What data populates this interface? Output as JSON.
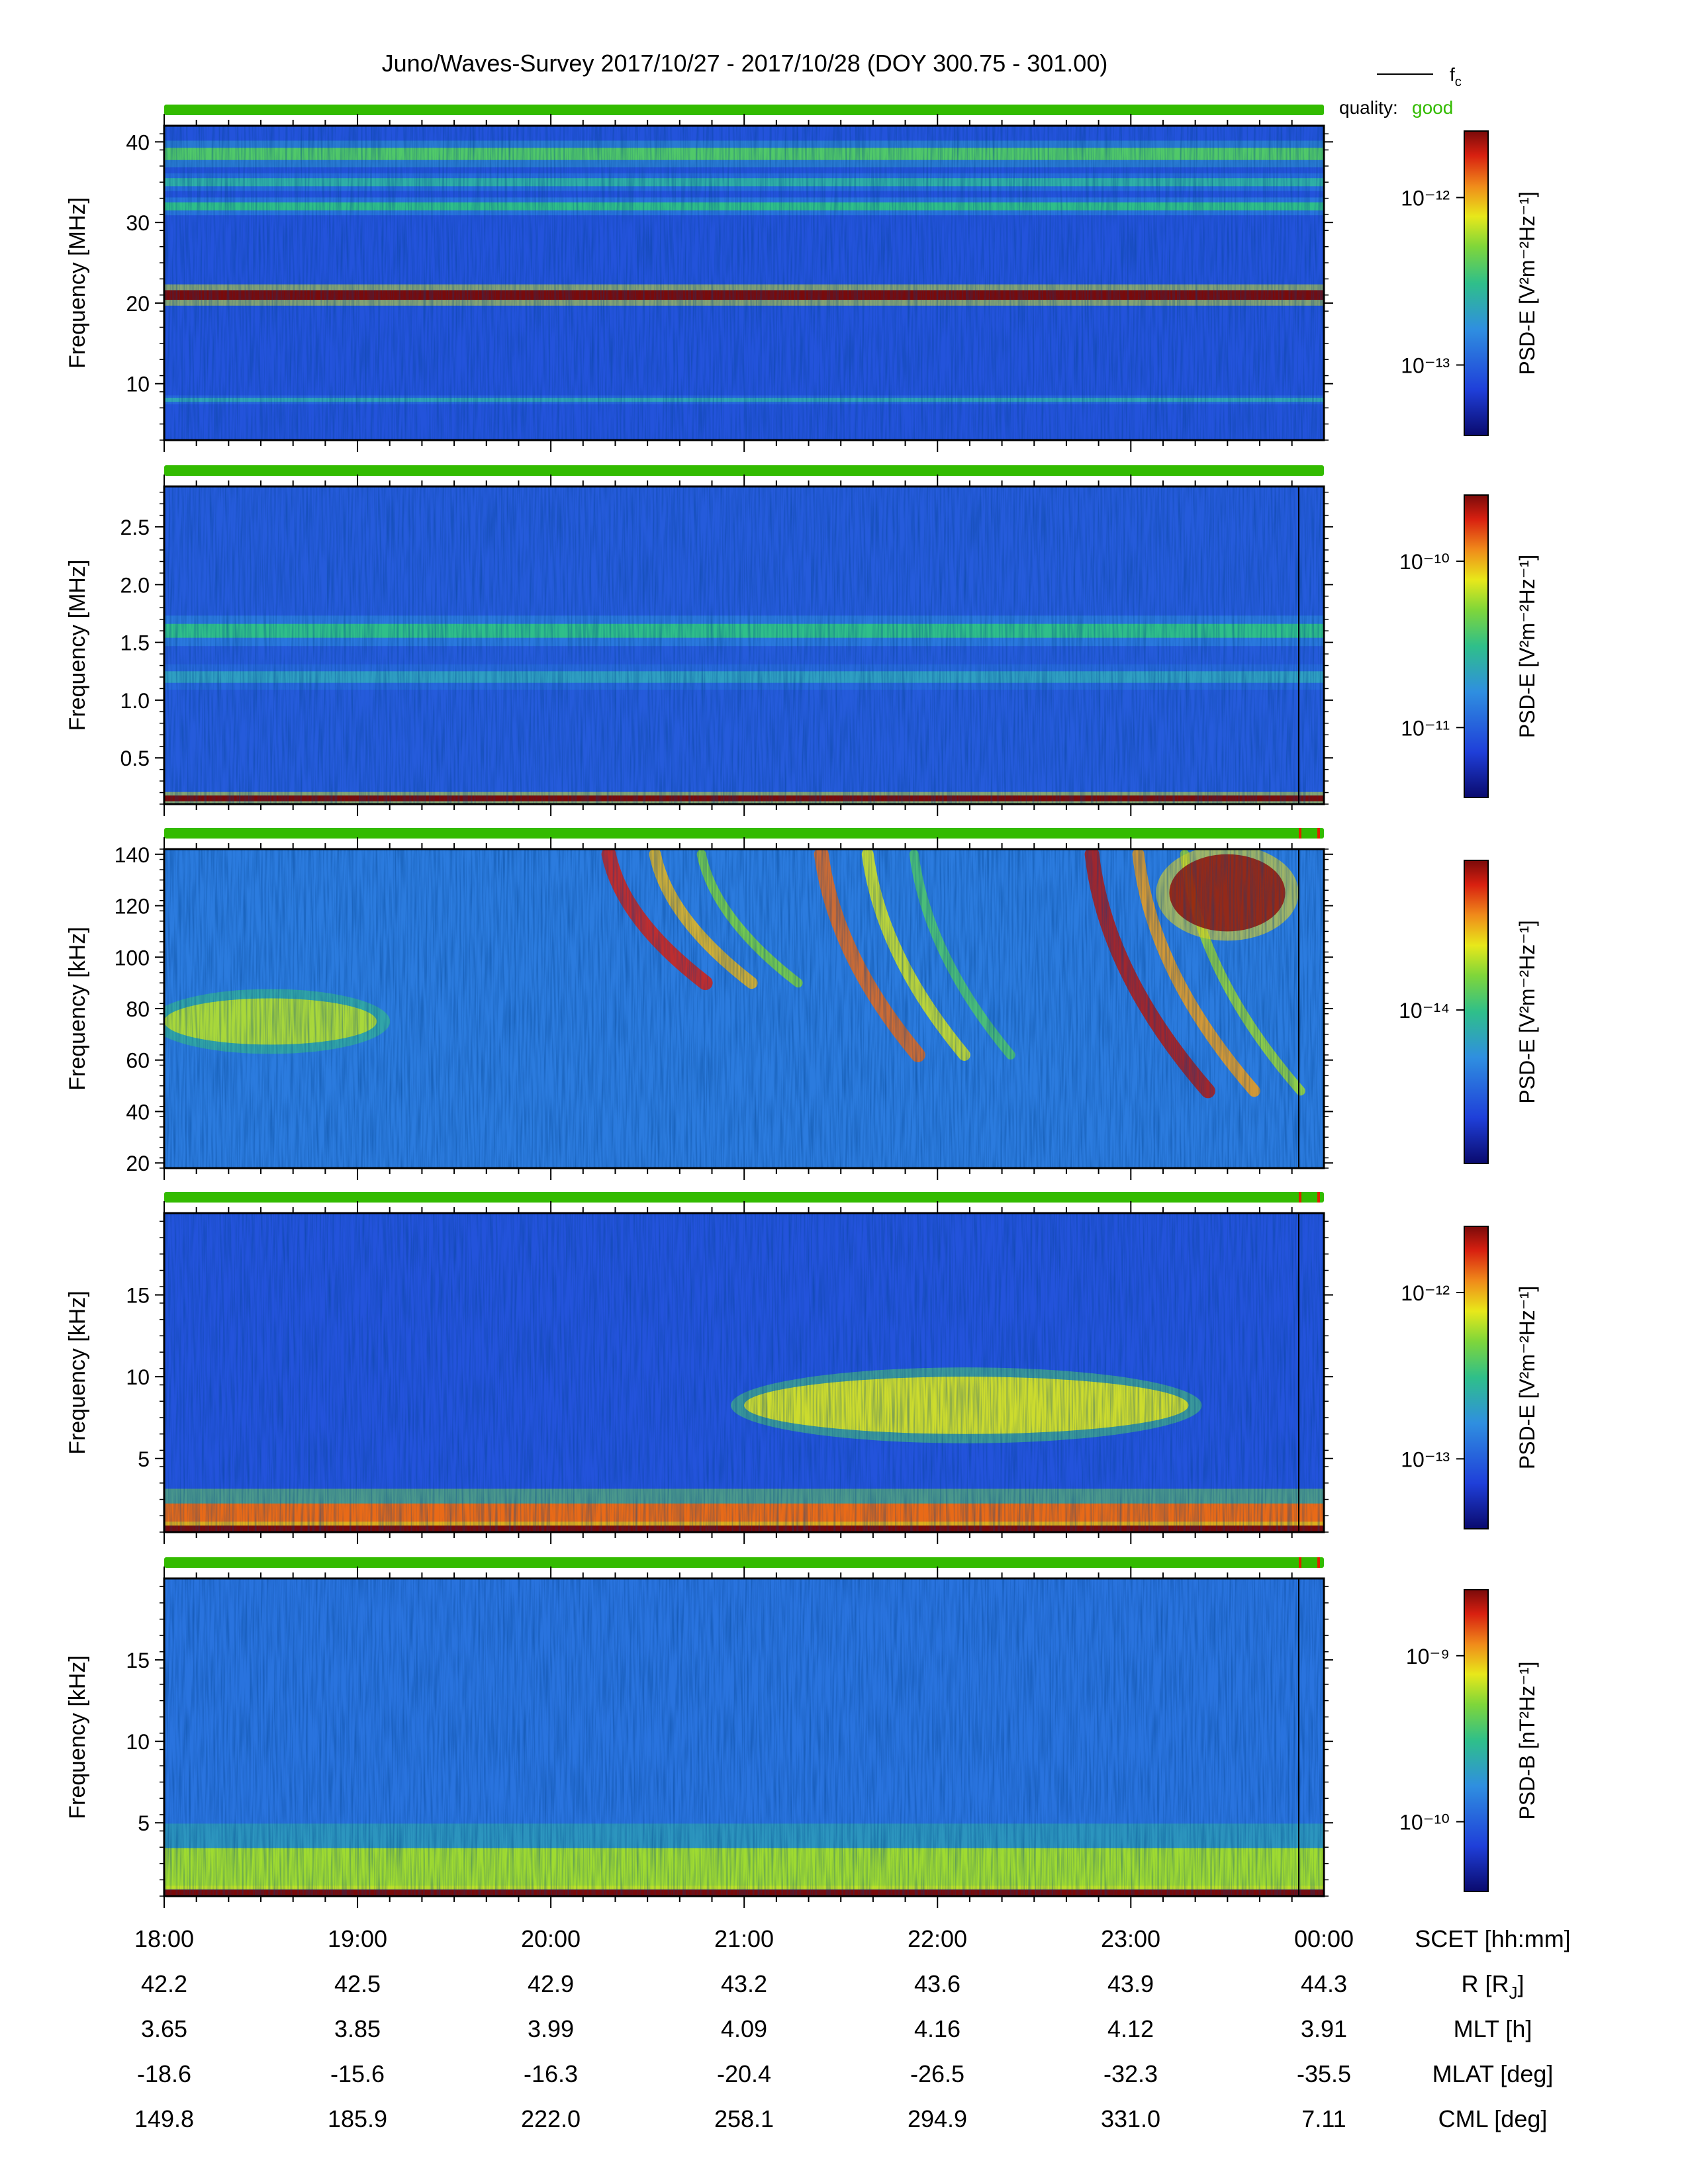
{
  "title": "Juno/Waves-Survey  2017/10/27 - 2017/10/28 (DOY 300.75 - 301.00)",
  "legend": {
    "fc_label": "f",
    "fc_sub": "c",
    "quality_label": "quality:",
    "quality_value": "good"
  },
  "colors": {
    "quality_good": "#33bb00",
    "quality_flag": "#dd2200",
    "axis": "#000000"
  },
  "chart_data": [
    {
      "type": "heatmap",
      "id": "panel1",
      "ylabel": "Frequency [MHz]",
      "ylim": [
        3,
        42
      ],
      "yticks": [
        10,
        20,
        30,
        40
      ],
      "ytick_labels": [
        "10",
        "20",
        "30",
        "40"
      ],
      "colorbar_label": "PSD-E [V²m⁻²Hz⁻¹]",
      "colorbar_ticks": [
        "10⁻¹³",
        "10⁻¹²"
      ],
      "features": [
        {
          "kind": "band",
          "y": 21,
          "width": 1.2,
          "level": 1.0
        },
        {
          "kind": "band",
          "y": 32,
          "width": 1.0,
          "level": 0.5
        },
        {
          "kind": "band",
          "y": 35,
          "width": 1.0,
          "level": 0.45
        },
        {
          "kind": "band",
          "y": 38.5,
          "width": 1.5,
          "level": 0.55
        },
        {
          "kind": "band",
          "y": 8,
          "width": 0.5,
          "level": 0.42
        }
      ]
    },
    {
      "type": "heatmap",
      "id": "panel2",
      "ylabel": "Frequency [MHz]",
      "ylim": [
        0.1,
        2.85
      ],
      "yticks": [
        0.5,
        1.0,
        1.5,
        2.0,
        2.5
      ],
      "ytick_labels": [
        "0.5",
        "1.0",
        "1.5",
        "2.0",
        "2.5"
      ],
      "colorbar_label": "PSD-E [V²m⁻²Hz⁻¹]",
      "colorbar_ticks": [
        "10⁻¹¹",
        "10⁻¹⁰"
      ],
      "features": [
        {
          "kind": "band",
          "y": 1.6,
          "width": 0.12,
          "level": 0.5
        },
        {
          "kind": "band",
          "y": 1.2,
          "width": 0.1,
          "level": 0.4
        },
        {
          "kind": "band",
          "y": 0.15,
          "width": 0.05,
          "level": 1.0
        }
      ]
    },
    {
      "type": "heatmap",
      "id": "panel3",
      "ylabel": "Frequency [kHz]",
      "ylim": [
        18,
        142
      ],
      "yticks": [
        20,
        40,
        60,
        80,
        100,
        120,
        140
      ],
      "ytick_labels": [
        "20",
        "40",
        "60",
        "80",
        "100",
        "120",
        "140"
      ],
      "colorbar_label": "PSD-E [V²m⁻²Hz⁻¹]",
      "colorbar_ticks": [
        "10⁻¹⁴"
      ],
      "features": [
        {
          "kind": "box",
          "x": [
            18.0,
            19.1
          ],
          "y": [
            66,
            84
          ],
          "level": 0.68
        },
        {
          "kind": "arc",
          "x": [
            20.3,
            20.8
          ],
          "y": [
            140,
            90
          ],
          "level": 0.92
        },
        {
          "kind": "arc",
          "x": [
            21.4,
            21.9
          ],
          "y": [
            140,
            62
          ],
          "level": 0.85
        },
        {
          "kind": "arc",
          "x": [
            22.8,
            23.4
          ],
          "y": [
            140,
            48
          ],
          "level": 0.95
        },
        {
          "kind": "box",
          "x": [
            23.2,
            23.8
          ],
          "y": [
            110,
            140
          ],
          "level": 0.98
        }
      ]
    },
    {
      "type": "heatmap",
      "id": "panel4",
      "ylabel": "Frequency [kHz]",
      "ylim": [
        0.5,
        20
      ],
      "yticks": [
        5,
        10,
        15
      ],
      "ytick_labels": [
        "5",
        "10",
        "15"
      ],
      "colorbar_label": "PSD-E [V²m⁻²Hz⁻¹]",
      "colorbar_ticks": [
        "10⁻¹³",
        "10⁻¹²"
      ],
      "features": [
        {
          "kind": "box",
          "x": [
            21.0,
            23.3
          ],
          "y": [
            6.5,
            10
          ],
          "level": 0.72
        },
        {
          "kind": "band",
          "y": 1.5,
          "width": 1.5,
          "level": 0.85
        },
        {
          "kind": "band",
          "y": 0.7,
          "width": 0.4,
          "level": 1.0
        }
      ]
    },
    {
      "type": "heatmap",
      "id": "panel5",
      "ylabel": "Frequency [kHz]",
      "ylim": [
        0.5,
        20
      ],
      "yticks": [
        5,
        10,
        15
      ],
      "ytick_labels": [
        "5",
        "10",
        "15"
      ],
      "colorbar_label": "PSD-B [nT²Hz⁻¹]",
      "colorbar_ticks": [
        "10⁻¹⁰",
        "10⁻⁹"
      ],
      "features": [
        {
          "kind": "band",
          "y": 2.2,
          "width": 2.5,
          "level": 0.65
        },
        {
          "kind": "band",
          "y": 0.7,
          "width": 0.4,
          "level": 1.0
        }
      ]
    }
  ],
  "xaxis": {
    "range_hours": [
      18,
      24
    ],
    "ticks_hours": [
      18,
      19,
      20,
      21,
      22,
      23,
      24
    ],
    "minor_step_hours": 0.1667
  },
  "ephemeris": [
    {
      "label": "SCET [hh:mm]",
      "values": [
        "18:00",
        "19:00",
        "20:00",
        "21:00",
        "22:00",
        "23:00",
        "00:00"
      ]
    },
    {
      "label": "R [R",
      "label_sub": "J",
      "label_end": "]",
      "values": [
        "42.2",
        "42.5",
        "42.9",
        "43.2",
        "43.6",
        "43.9",
        "44.3"
      ]
    },
    {
      "label": "MLT [h]",
      "values": [
        "3.65",
        "3.85",
        "3.99",
        "4.09",
        "4.16",
        "4.12",
        "3.91"
      ]
    },
    {
      "label": "MLAT [deg]",
      "values": [
        "-18.6",
        "-15.6",
        "-16.3",
        "-20.4",
        "-26.5",
        "-32.3",
        "-35.5"
      ]
    },
    {
      "label": "CML [deg]",
      "values": [
        "149.8",
        "185.9",
        "222.0",
        "258.1",
        "294.9",
        "331.0",
        "7.11"
      ]
    }
  ]
}
